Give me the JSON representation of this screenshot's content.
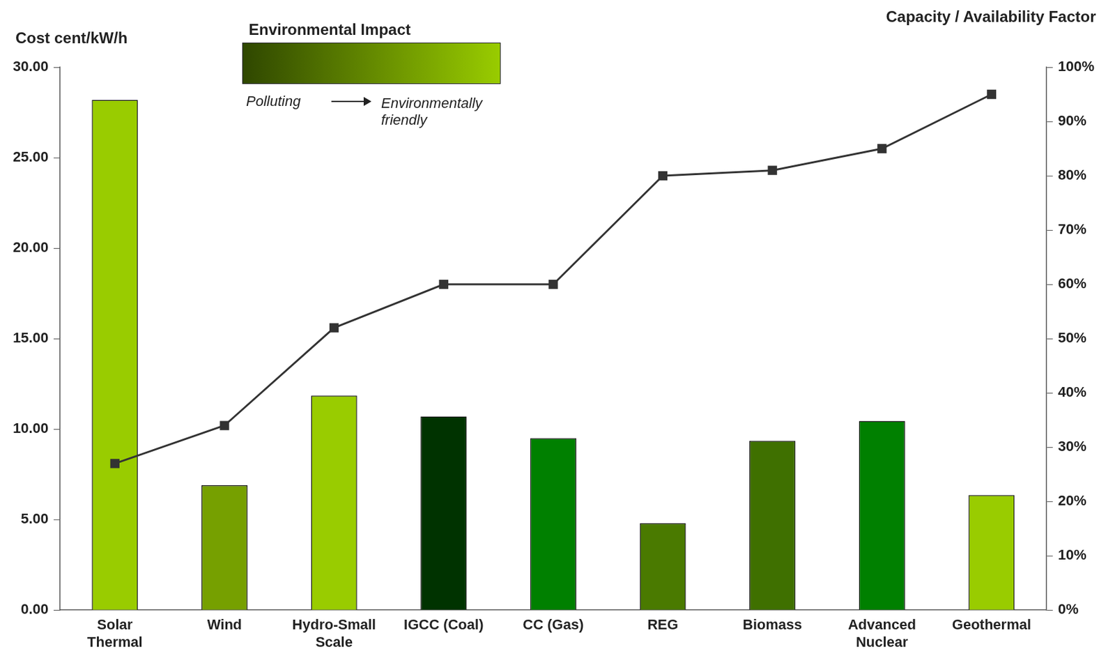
{
  "chart_data": {
    "type": "bar",
    "categories": [
      "Solar Thermal",
      "Wind",
      "Hydro-Small Scale",
      "IGCC (Coal)",
      "CC (Gas)",
      "REG",
      "Biomass",
      "Advanced Nuclear",
      "Geothermal"
    ],
    "series": [
      {
        "type": "bar",
        "colors": [
          "#99cc00",
          "#76a000",
          "#99cc00",
          "#003300",
          "#008000",
          "#4a7a00",
          "#3f7000",
          "#008000",
          "#99cc00"
        ],
        "values": [
          28.2,
          6.9,
          11.85,
          10.7,
          9.5,
          4.8,
          9.35,
          10.45,
          6.35
        ]
      },
      {
        "type": "line",
        "axis": "y2",
        "color": "#333333",
        "marker": "square",
        "line_style": "solid",
        "values": [
          27,
          34,
          52,
          60,
          60,
          80,
          81,
          85,
          95
        ]
      }
    ],
    "y_label": "Cost cent/kW/h",
    "y2_label": "Capacity / Availability Factor",
    "ylim": [
      0,
      30
    ],
    "yticks": [
      {
        "value": 0,
        "label": "0.00"
      },
      {
        "value": 5,
        "label": "5.00"
      },
      {
        "value": 10,
        "label": "10.00"
      },
      {
        "value": 15,
        "label": "15.00"
      },
      {
        "value": 20,
        "label": "20.00"
      },
      {
        "value": 25,
        "label": "25.00"
      },
      {
        "value": 30,
        "label": "30.00"
      }
    ],
    "y2lim": [
      0,
      100
    ],
    "y2ticks": [
      {
        "value": 0,
        "label": "0%"
      },
      {
        "value": 10,
        "label": "10%"
      },
      {
        "value": 20,
        "label": "20%"
      },
      {
        "value": 30,
        "label": "30%"
      },
      {
        "value": 40,
        "label": "40%"
      },
      {
        "value": 50,
        "label": "50%"
      },
      {
        "value": 60,
        "label": "60%"
      },
      {
        "value": 70,
        "label": "70%"
      },
      {
        "value": 80,
        "label": "80%"
      },
      {
        "value": 90,
        "label": "90%"
      },
      {
        "value": 100,
        "label": "100%"
      }
    ],
    "colorbar": {
      "title": "Environmental Impact",
      "colors": [
        "#2f4700",
        "#99cc00"
      ],
      "low_label": "Polluting",
      "high_label": "Environmentally friendly"
    },
    "grid": false
  }
}
